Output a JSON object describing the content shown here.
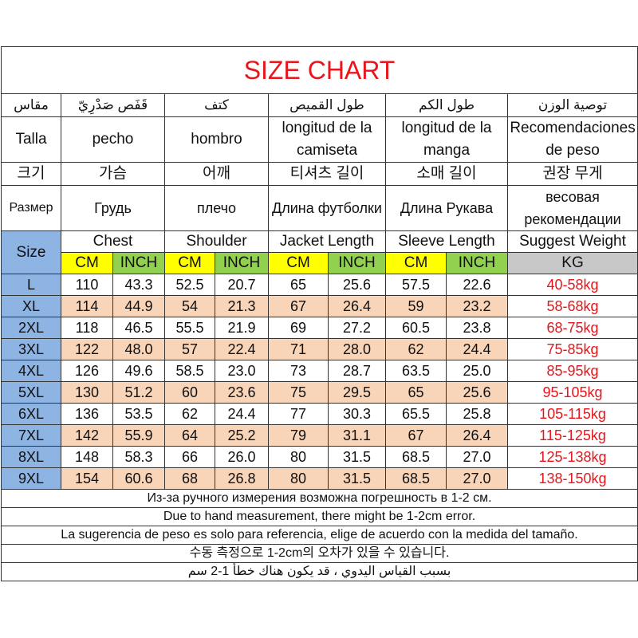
{
  "title": "SIZE CHART",
  "header_rows": {
    "arabic": [
      "مقاس",
      "قَفَص صَدْرِيّ",
      "كتف",
      "طول القميص",
      "طول الكم",
      "توصية الوزن"
    ],
    "spanish": [
      "Talla",
      "pecho",
      "hombro",
      "longitud de la camiseta",
      "longitud de la manga",
      "Recomendaciones de peso"
    ],
    "korean": [
      "크기",
      "가슴",
      "어깨",
      "티셔츠 길이",
      "소매 길이",
      "권장 무게"
    ],
    "russian": [
      "Размер",
      "Грудь",
      "плечо",
      "Длина футболки",
      "Длина Рукава",
      "весовая рекомендации"
    ],
    "english": [
      "Size",
      "Chest",
      "Shoulder",
      "Jacket Length",
      "Sleeve Length",
      "Suggest Weight"
    ]
  },
  "units": [
    "CM",
    "INCH",
    "CM",
    "INCH",
    "CM",
    "INCH",
    "CM",
    "INCH",
    "KG"
  ],
  "colors": {
    "title": "#e8161b",
    "cm": "#ffff00",
    "inch": "#92d050",
    "kg": "#c8c8c8",
    "size": "#8db4e2",
    "alt_row": "#f8d4b8",
    "weight_text": "#e8161b"
  },
  "rows": [
    [
      "L",
      "110",
      "43.3",
      "52.5",
      "20.7",
      "65",
      "25.6",
      "57.5",
      "22.6",
      "40-58kg"
    ],
    [
      "XL",
      "114",
      "44.9",
      "54",
      "21.3",
      "67",
      "26.4",
      "59",
      "23.2",
      "58-68kg"
    ],
    [
      "2XL",
      "118",
      "46.5",
      "55.5",
      "21.9",
      "69",
      "27.2",
      "60.5",
      "23.8",
      "68-75kg"
    ],
    [
      "3XL",
      "122",
      "48.0",
      "57",
      "22.4",
      "71",
      "28.0",
      "62",
      "24.4",
      "75-85kg"
    ],
    [
      "4XL",
      "126",
      "49.6",
      "58.5",
      "23.0",
      "73",
      "28.7",
      "63.5",
      "25.0",
      "85-95kg"
    ],
    [
      "5XL",
      "130",
      "51.2",
      "60",
      "23.6",
      "75",
      "29.5",
      "65",
      "25.6",
      "95-105kg"
    ],
    [
      "6XL",
      "136",
      "53.5",
      "62",
      "24.4",
      "77",
      "30.3",
      "65.5",
      "25.8",
      "105-115kg"
    ],
    [
      "7XL",
      "142",
      "55.9",
      "64",
      "25.2",
      "79",
      "31.1",
      "67",
      "26.4",
      "115-125kg"
    ],
    [
      "8XL",
      "148",
      "58.3",
      "66",
      "26.0",
      "80",
      "31.5",
      "68.5",
      "27.0",
      "125-138kg"
    ],
    [
      "9XL",
      "154",
      "60.6",
      "68",
      "26.8",
      "80",
      "31.5",
      "68.5",
      "27.0",
      "138-150kg"
    ]
  ],
  "footnotes": [
    "Из-за ручного измерения возможна погрешность в 1-2 см.",
    "Due to hand measurement, there might be 1-2cm error.",
    "La sugerencia de peso es solo para referencia, elige de acuerdo con la medida del tamaño.",
    "수동 측정으로 1-2cm의 오차가 있을 수 있습니다.",
    "بسبب القياس اليدوي ، قد يكون هناك خطأ 1-2 سم"
  ]
}
